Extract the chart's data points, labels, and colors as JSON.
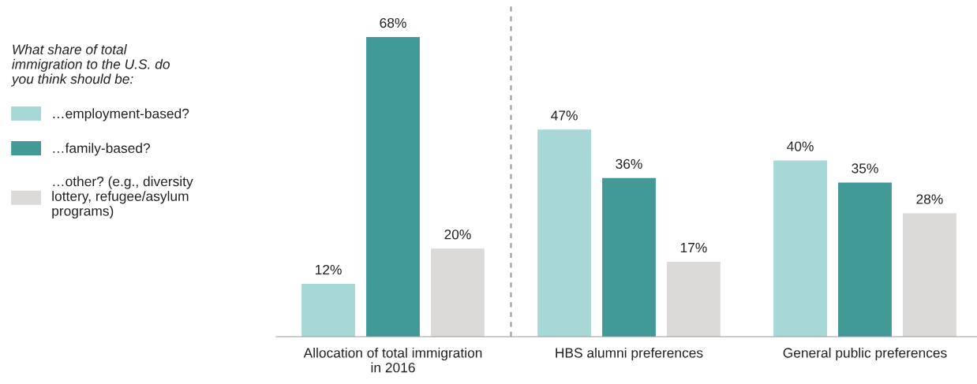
{
  "chart_data": {
    "type": "bar",
    "categories": [
      "Allocation of total immigration in 2016",
      "HBS alumni preferences",
      "General public preferences"
    ],
    "legend_title": "What share of total immigration to the U.S. do you think should be:",
    "series": [
      {
        "name": "…employment-based?",
        "color": "#a8d8d5",
        "values": [
          12,
          47,
          40
        ],
        "value_labels": [
          "12%",
          "47%",
          "40%"
        ]
      },
      {
        "name": "…family-based?",
        "color": "#429a97",
        "values": [
          68,
          36,
          35
        ],
        "value_labels": [
          "68%",
          "36%",
          "35%"
        ]
      },
      {
        "name": "…other? (e.g., diversity lottery, refugee/asylum programs)",
        "color": "#dcdad8",
        "values": [
          20,
          17,
          28
        ],
        "value_labels": [
          "20%",
          "17%",
          "28%"
        ]
      }
    ],
    "legend": "left",
    "grid": false
  }
}
